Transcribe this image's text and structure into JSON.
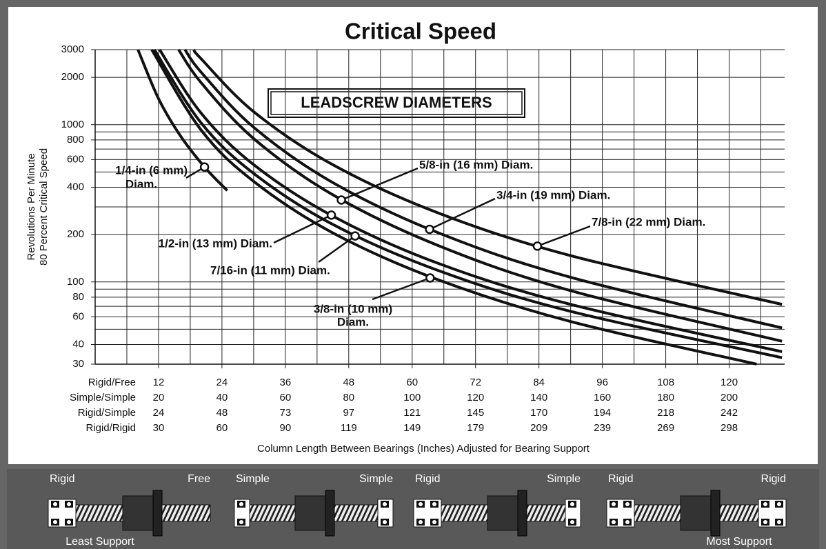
{
  "chart_data": {
    "type": "line",
    "title": "Critical Speed",
    "legend_title": "LEADSCREW DIAMETERS",
    "ylabel": [
      "Revolutions Per Minute",
      "80 Percent Critical Speed"
    ],
    "xlabel": "Column Length Between Bearings (Inches) Adjusted for Bearing Support",
    "log_y": true,
    "grid": true,
    "color": "#111111",
    "ylim": [
      30,
      3000
    ],
    "yticks": [
      30,
      40,
      60,
      80,
      100,
      200,
      400,
      600,
      800,
      1000,
      2000,
      3000
    ],
    "yminor": [
      50,
      70,
      90,
      300,
      500,
      700,
      900
    ],
    "xlim": [
      0,
      130.5
    ],
    "xticks": [
      12,
      24,
      36,
      48,
      60,
      72,
      84,
      96,
      108,
      120
    ],
    "xminor": [
      0,
      6,
      18,
      30,
      42,
      54,
      66,
      78,
      90,
      102,
      114,
      126
    ],
    "xtick_rows": [
      {
        "name": "Rigid/Free",
        "labels": [
          12,
          24,
          36,
          48,
          60,
          72,
          84,
          96,
          108,
          120
        ]
      },
      {
        "name": "Simple/Simple",
        "labels": [
          20,
          40,
          60,
          80,
          100,
          120,
          140,
          160,
          180,
          200
        ]
      },
      {
        "name": "Rigid/Simple",
        "labels": [
          24,
          48,
          73,
          97,
          121,
          145,
          170,
          194,
          218,
          242
        ]
      },
      {
        "name": "Rigid/Rigid",
        "labels": [
          30,
          60,
          90,
          119,
          149,
          179,
          209,
          239,
          269,
          298
        ]
      }
    ],
    "series": [
      {
        "name": [
          "1/4-in (6 mm)",
          "Diam."
        ],
        "x": [
          8.1,
          12,
          16,
          20.7,
          25
        ],
        "values": [
          3000,
          1462,
          863,
          538,
          381
        ],
        "marker": {
          "x": 20.7,
          "value": 538
        }
      },
      {
        "name": [
          "3/8-in (10 mm)",
          "Diam."
        ],
        "x": [
          10.7,
          20,
          30,
          45,
          65,
          90,
          125.2
        ],
        "values": [
          3000,
          930,
          436,
          205,
          103,
          56,
          30
        ],
        "marker": {
          "x": 63.4,
          "value": 106
        }
      },
      {
        "name": [
          "7/16-in (11 mm) Diam."
        ],
        "x": [
          11.2,
          20,
          30,
          45,
          65,
          90,
          130
        ],
        "values": [
          3000,
          1032,
          490,
          232,
          118,
          65,
          33
        ],
        "marker": {
          "x": 49.2,
          "value": 196
        }
      },
      {
        "name": [
          "1/2-in (13 mm) Diam."
        ],
        "x": [
          12.2,
          20,
          30,
          45,
          65,
          90,
          130
        ],
        "values": [
          3000,
          1191,
          557,
          262,
          131,
          72,
          36
        ],
        "marker": {
          "x": 44.7,
          "value": 266
        }
      },
      {
        "name": [
          "5/8-in (16 mm) Diam."
        ],
        "x": [
          15.8,
          20,
          30,
          45,
          65,
          90,
          130
        ],
        "values": [
          3000,
          1859,
          816,
          358,
          170,
          88,
          42
        ],
        "marker": {
          "x": 46.6,
          "value": 332
        }
      },
      {
        "name": [
          "3/4-in (19 mm) Diam."
        ],
        "x": [
          17,
          20,
          30,
          45,
          65,
          90,
          130
        ],
        "values": [
          3000,
          2168,
          963,
          428,
          205,
          107,
          51
        ],
        "marker": {
          "x": 63.3,
          "value": 216
        }
      },
      {
        "name": [
          "7/8-in (22 mm) Diam."
        ],
        "x": [
          18.7,
          20,
          30,
          45,
          65,
          90,
          130
        ],
        "values": [
          3000,
          2637,
          1210,
          556,
          274,
          147,
          72
        ],
        "marker": {
          "x": 83.7,
          "value": 169
        }
      }
    ]
  },
  "supports": [
    {
      "left": "Rigid",
      "right": "Free"
    },
    {
      "left": "Simple",
      "right": "Simple"
    },
    {
      "left": "Rigid",
      "right": "Simple"
    },
    {
      "left": "Rigid",
      "right": "Rigid"
    }
  ],
  "least_support": "Least Support",
  "most_support": "Most Support"
}
